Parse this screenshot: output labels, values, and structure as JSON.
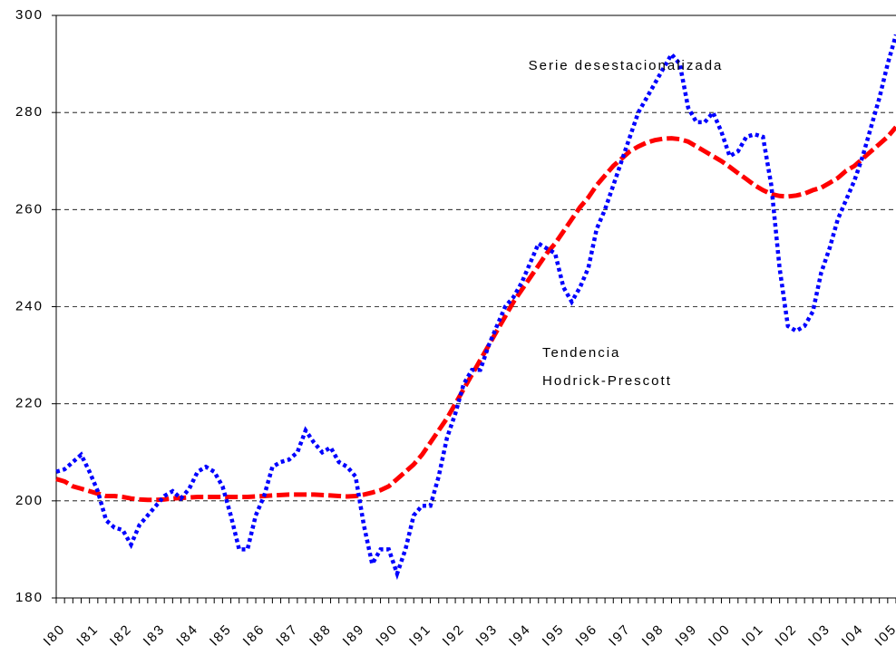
{
  "chart_data": {
    "type": "line",
    "categories": [
      "I80",
      null,
      null,
      null,
      "I81",
      null,
      null,
      null,
      "I82",
      null,
      null,
      null,
      "I83",
      null,
      null,
      null,
      "I84",
      null,
      null,
      null,
      "I85",
      null,
      null,
      null,
      "I86",
      null,
      null,
      null,
      "I87",
      null,
      null,
      null,
      "I88",
      null,
      null,
      null,
      "I89",
      null,
      null,
      null,
      "I90",
      null,
      null,
      null,
      "I91",
      null,
      null,
      null,
      "I92",
      null,
      null,
      null,
      "I93",
      null,
      null,
      null,
      "I94",
      null,
      null,
      null,
      "I95",
      null,
      null,
      null,
      "I96",
      null,
      null,
      null,
      "I97",
      null,
      null,
      null,
      "I98",
      null,
      null,
      null,
      "I99",
      null,
      null,
      null,
      "I00",
      null,
      null,
      null,
      "I01",
      null,
      null,
      null,
      "I02",
      null,
      null,
      null,
      "I03",
      null,
      null,
      null,
      "I04",
      null,
      null,
      null,
      "I05",
      null
    ],
    "series": [
      {
        "name": "Serie desestacionalizada",
        "color": "#0000ff",
        "style": "dotted",
        "values": [
          206,
          206.5,
          208,
          209.5,
          206,
          202,
          196,
          194.5,
          194,
          191,
          195,
          197,
          199,
          201,
          202,
          200.5,
          202.5,
          206,
          207,
          206,
          203,
          197,
          190,
          190,
          197,
          201,
          207,
          208,
          208.5,
          210,
          214.5,
          212,
          210,
          211,
          208,
          207,
          205,
          195,
          187,
          190,
          190,
          185,
          190,
          197,
          199,
          199,
          205,
          213,
          218,
          224,
          227,
          227,
          232,
          236,
          240,
          242,
          245,
          249,
          253,
          252,
          251,
          244,
          241,
          244,
          248,
          256,
          260,
          265,
          270,
          275,
          280,
          283,
          286,
          289,
          292,
          290,
          281,
          278,
          278,
          280,
          276,
          271,
          272,
          275,
          275.5,
          275,
          265,
          248,
          236,
          235,
          236,
          239,
          247,
          252,
          258,
          262,
          266,
          271,
          277,
          283,
          290,
          296
        ]
      },
      {
        "name": "Tendencia Hodrick-Prescott",
        "color": "#ff0000",
        "style": "dashed",
        "values": [
          204.5,
          204,
          203,
          202.5,
          202,
          201.5,
          201,
          201,
          200.8,
          200.5,
          200.3,
          200.2,
          200.2,
          200.3,
          200.5,
          200.6,
          200.7,
          200.8,
          200.8,
          200.8,
          200.8,
          200.8,
          200.8,
          200.8,
          200.9,
          201,
          201.1,
          201.2,
          201.3,
          201.3,
          201.3,
          201.3,
          201.2,
          201.1,
          201,
          200.9,
          201,
          201.3,
          201.7,
          202.2,
          203,
          204.5,
          206,
          207.5,
          209.5,
          212,
          214.5,
          217,
          220,
          223,
          226,
          229,
          232,
          235,
          238,
          241,
          243.5,
          246,
          248.5,
          251,
          253,
          255.5,
          258,
          260.5,
          262.5,
          265,
          267,
          269,
          270.5,
          272,
          273,
          273.8,
          274.3,
          274.6,
          274.7,
          274.5,
          274,
          273,
          272,
          271,
          270,
          268.8,
          267.5,
          266.3,
          265,
          264,
          263.2,
          262.8,
          262.7,
          262.9,
          263.3,
          264,
          264.5,
          265.5,
          266.5,
          268,
          269,
          270.5,
          272,
          273.5,
          275,
          277
        ]
      }
    ],
    "annotations": [
      "Serie desestacionalizada",
      "Tendencia",
      "Hodrick-Prescott"
    ],
    "ylim": [
      180,
      300
    ],
    "yticks": [
      180,
      200,
      220,
      240,
      260,
      280,
      300
    ],
    "grid": true
  }
}
